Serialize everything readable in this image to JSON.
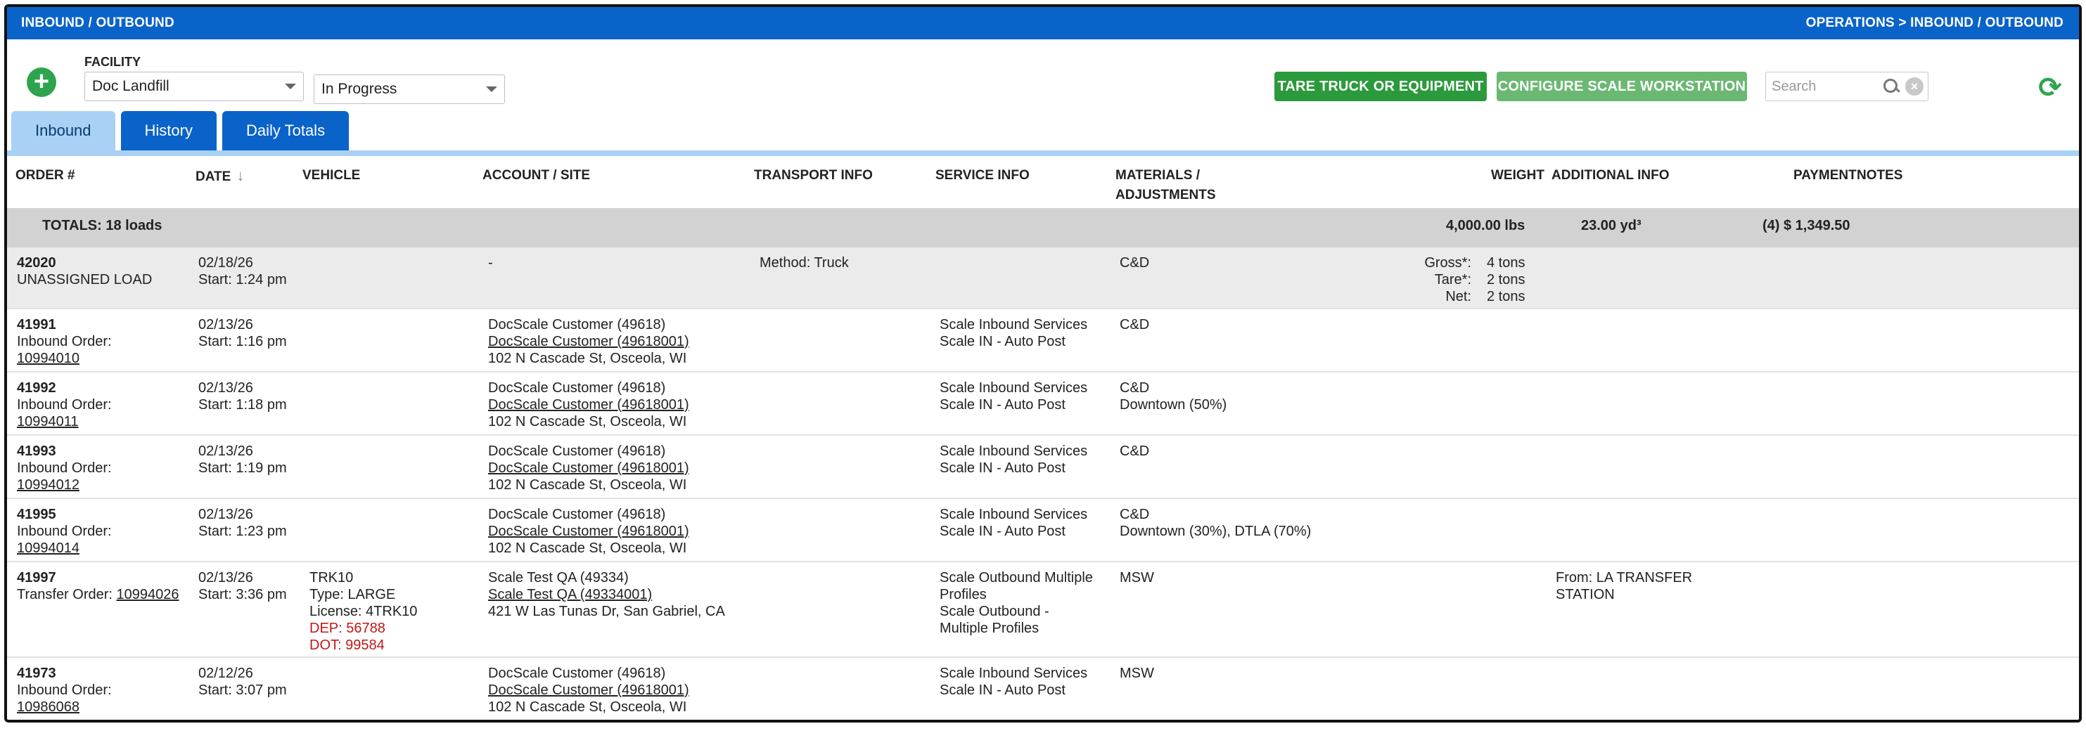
{
  "header": {
    "title": "INBOUND / OUTBOUND",
    "breadcrumb": "OPERATIONS > INBOUND / OUTBOUND"
  },
  "toolbar": {
    "add_icon": "plus-circle-icon",
    "facility_label": "FACILITY",
    "facility_value": "Doc Landfill",
    "status_value": "In Progress",
    "tare_button": "TARE TRUCK OR EQUIPMENT",
    "configure_button": "CONFIGURE SCALE WORKSTATION",
    "search_placeholder": "Search",
    "refresh_icon": "refresh-icon"
  },
  "tabs": [
    {
      "label": "Inbound",
      "active": true
    },
    {
      "label": "History",
      "active": false
    },
    {
      "label": "Daily Totals",
      "active": false
    }
  ],
  "columns": {
    "order": "ORDER #",
    "date": "DATE",
    "vehicle": "VEHICLE",
    "account": "ACCOUNT / SITE",
    "transport": "TRANSPORT INFO",
    "service": "SERVICE INFO",
    "materials_1": "MATERIALS /",
    "materials_2": "ADJUSTMENTS",
    "weight": "WEIGHT",
    "additional": "ADDITIONAL INFO",
    "payment": "PAYMENT",
    "notes": "NOTES"
  },
  "totals": {
    "label": "TOTALS: 18 loads",
    "weight": "4,000.00 lbs",
    "volume": "23.00 yd³",
    "payment": "(4) $ 1,349.50"
  },
  "rows": [
    {
      "order": "42020",
      "order_sub": "UNASSIGNED LOAD",
      "order_link": "",
      "date": "02/18/26",
      "start": "Start: 1:24 pm",
      "account_name": "-",
      "transport": "Method: Truck",
      "material_1": "C&D",
      "gross_label": "Gross*:",
      "gross": "4 tons",
      "tare_label": "Tare*:",
      "tare": "2 tons",
      "net_label": "Net:",
      "net": "2 tons"
    },
    {
      "order": "41991",
      "order_sub": "Inbound Order:",
      "order_link": "10994010",
      "date": "02/13/26",
      "start": "Start: 1:16 pm",
      "account_name": "DocScale Customer (49618)",
      "account_link": "DocScale Customer (49618001)",
      "address": "102 N Cascade St, Osceola, WI",
      "service_1": "Scale Inbound Services",
      "service_2": "Scale IN - Auto Post",
      "material_1": "C&D"
    },
    {
      "order": "41992",
      "order_sub": "Inbound Order:",
      "order_link": "10994011",
      "date": "02/13/26",
      "start": "Start: 1:18 pm",
      "account_name": "DocScale Customer (49618)",
      "account_link": "DocScale Customer (49618001)",
      "address": "102 N Cascade St, Osceola, WI",
      "service_1": "Scale Inbound Services",
      "service_2": "Scale IN - Auto Post",
      "material_1": "C&D",
      "material_2": "Downtown (50%)"
    },
    {
      "order": "41993",
      "order_sub": "Inbound Order:",
      "order_link": "10994012",
      "date": "02/13/26",
      "start": "Start: 1:19 pm",
      "account_name": "DocScale Customer (49618)",
      "account_link": "DocScale Customer (49618001)",
      "address": "102 N Cascade St, Osceola, WI",
      "service_1": "Scale Inbound Services",
      "service_2": "Scale IN - Auto Post",
      "material_1": "C&D"
    },
    {
      "order": "41995",
      "order_sub": "Inbound Order:",
      "order_link": "10994014",
      "date": "02/13/26",
      "start": "Start: 1:23 pm",
      "account_name": "DocScale Customer (49618)",
      "account_link": "DocScale Customer (49618001)",
      "address": "102 N Cascade St, Osceola, WI",
      "service_1": "Scale Inbound Services",
      "service_2": "Scale IN - Auto Post",
      "material_1": "C&D",
      "material_2": "Downtown (30%), DTLA (70%)"
    },
    {
      "order": "41997",
      "order_sub": "Transfer Order:",
      "order_link": "10994026",
      "date": "02/13/26",
      "start": "Start: 3:36 pm",
      "vehicle_1": "TRK10",
      "vehicle_2": "Type: LARGE",
      "vehicle_3": "License: 4TRK10",
      "vehicle_dep": "DEP: 56788",
      "vehicle_dot": "DOT: 99584",
      "account_name": "Scale Test QA (49334)",
      "account_link": "Scale Test QA (49334001)",
      "address": "421 W Las Tunas Dr, San Gabriel, CA",
      "service_1": "Scale Outbound Multiple",
      "service_2": "Profiles",
      "service_3": "Scale Outbound -",
      "service_4": "Multiple Profiles",
      "material_1": "MSW",
      "additional_1": "From: LA TRANSFER",
      "additional_2": "STATION"
    },
    {
      "order": "41973",
      "order_sub": "Inbound Order:",
      "order_link": "10986068",
      "date": "02/12/26",
      "start": "Start: 3:07 pm",
      "account_name": "DocScale Customer (49618)",
      "account_link": "DocScale Customer (49618001)",
      "address": "102 N Cascade St, Osceola, WI",
      "service_1": "Scale Inbound Services",
      "service_2": "Scale IN - Auto Post",
      "material_1": "MSW"
    }
  ]
}
